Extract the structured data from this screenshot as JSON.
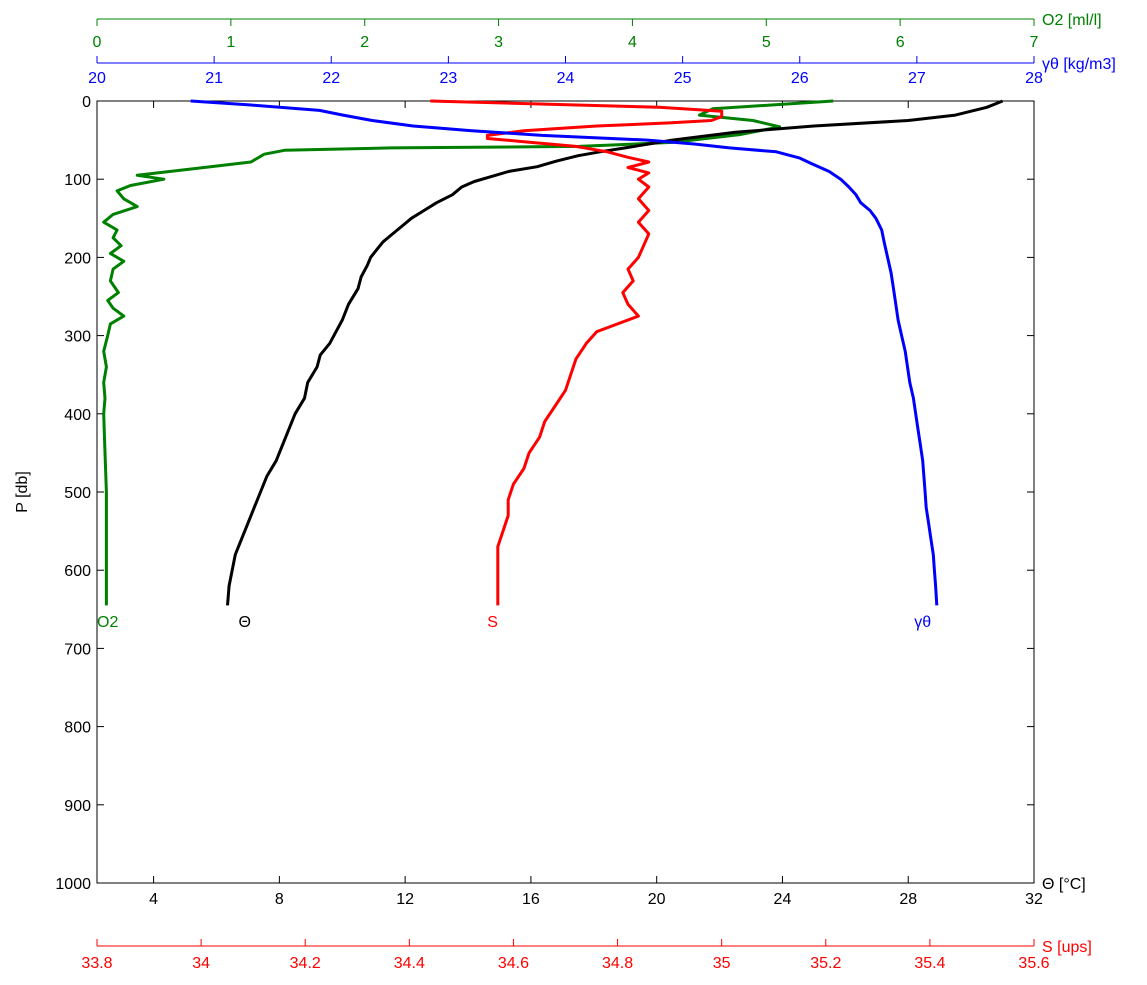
{
  "chart_data": {
    "type": "line",
    "y_axis": {
      "label": "P [db]",
      "ticks": [
        0,
        100,
        200,
        300,
        400,
        500,
        600,
        700,
        800,
        900,
        1000
      ],
      "range": [
        0,
        1000
      ],
      "inverted": true
    },
    "axes": {
      "theta": {
        "label": "Θ [°C]",
        "unit": "°C",
        "position": "bottom",
        "color": "#000000",
        "range": [
          2.2,
          32
        ],
        "ticks": [
          4,
          8,
          12,
          16,
          20,
          24,
          28,
          32
        ],
        "tick_labels": [
          "4",
          "8",
          "12",
          "16",
          "20",
          "24",
          "28",
          "32"
        ]
      },
      "salinity": {
        "label": "S [ups]",
        "unit": "ups",
        "position": "bottom-secondary",
        "color": "#ff0000",
        "range": [
          33.8,
          35.6
        ],
        "ticks": [
          33.8,
          34,
          34.2,
          34.4,
          34.6,
          34.8,
          35,
          35.2,
          35.4,
          35.6
        ],
        "tick_labels": [
          "33.8",
          "34",
          "34.2",
          "34.4",
          "34.6",
          "34.8",
          "35",
          "35.2",
          "35.4",
          "35.6"
        ]
      },
      "oxygen": {
        "label": "O2 [ml/l]",
        "unit": "ml/l",
        "position": "top",
        "color": "#008000",
        "range": [
          0,
          7
        ],
        "ticks": [
          0,
          1,
          2,
          3,
          4,
          5,
          6,
          7
        ],
        "tick_labels": [
          "0",
          "1",
          "2",
          "3",
          "4",
          "5",
          "6",
          "7"
        ]
      },
      "gamma": {
        "label": "γθ [kg/m3]",
        "unit": "kg/m3",
        "position": "top-secondary",
        "color": "#0000ff",
        "range": [
          20,
          28
        ],
        "ticks": [
          20,
          21,
          22,
          23,
          24,
          25,
          26,
          27,
          28
        ],
        "tick_labels": [
          "20",
          "21",
          "22",
          "23",
          "24",
          "25",
          "26",
          "27",
          "28"
        ]
      }
    },
    "series": [
      {
        "name": "O2",
        "axis": "oxygen",
        "color": "#008000",
        "label_at": [
          0.08,
          665
        ],
        "points": [
          [
            5.5,
            0
          ],
          [
            4.6,
            10
          ],
          [
            4.5,
            18
          ],
          [
            4.9,
            25
          ],
          [
            5.1,
            33
          ],
          [
            4.8,
            43
          ],
          [
            4.3,
            53
          ],
          [
            3.6,
            58
          ],
          [
            2.2,
            60
          ],
          [
            1.4,
            63
          ],
          [
            1.25,
            68
          ],
          [
            1.15,
            78
          ],
          [
            0.8,
            85
          ],
          [
            0.3,
            95
          ],
          [
            0.5,
            100
          ],
          [
            0.25,
            108
          ],
          [
            0.15,
            115
          ],
          [
            0.2,
            125
          ],
          [
            0.3,
            135
          ],
          [
            0.12,
            145
          ],
          [
            0.05,
            155
          ],
          [
            0.15,
            165
          ],
          [
            0.12,
            175
          ],
          [
            0.18,
            185
          ],
          [
            0.1,
            195
          ],
          [
            0.2,
            205
          ],
          [
            0.12,
            215
          ],
          [
            0.1,
            230
          ],
          [
            0.16,
            245
          ],
          [
            0.08,
            255
          ],
          [
            0.12,
            265
          ],
          [
            0.2,
            275
          ],
          [
            0.1,
            285
          ],
          [
            0.08,
            300
          ],
          [
            0.05,
            320
          ],
          [
            0.07,
            340
          ],
          [
            0.05,
            360
          ],
          [
            0.06,
            380
          ],
          [
            0.05,
            400
          ],
          [
            0.06,
            450
          ],
          [
            0.07,
            500
          ],
          [
            0.07,
            550
          ],
          [
            0.07,
            600
          ],
          [
            0.07,
            645
          ]
        ]
      },
      {
        "name": "Θ",
        "axis": "theta",
        "color": "#000000",
        "label_at": [
          6.9,
          665
        ],
        "points": [
          [
            31.0,
            0
          ],
          [
            30.5,
            8
          ],
          [
            29.5,
            18
          ],
          [
            28.0,
            25
          ],
          [
            25.0,
            32
          ],
          [
            22.5,
            40
          ],
          [
            20.5,
            50
          ],
          [
            19.0,
            60
          ],
          [
            18.2,
            65
          ],
          [
            17.5,
            70
          ],
          [
            16.8,
            77
          ],
          [
            16.2,
            84
          ],
          [
            15.3,
            90
          ],
          [
            14.7,
            97
          ],
          [
            14.2,
            103
          ],
          [
            13.8,
            110
          ],
          [
            13.5,
            120
          ],
          [
            13.0,
            130
          ],
          [
            12.6,
            140
          ],
          [
            12.2,
            150
          ],
          [
            11.9,
            160
          ],
          [
            11.6,
            170
          ],
          [
            11.3,
            180
          ],
          [
            11.1,
            190
          ],
          [
            10.9,
            200
          ],
          [
            10.8,
            210
          ],
          [
            10.6,
            225
          ],
          [
            10.5,
            240
          ],
          [
            10.2,
            260
          ],
          [
            10.0,
            280
          ],
          [
            9.8,
            295
          ],
          [
            9.6,
            310
          ],
          [
            9.3,
            325
          ],
          [
            9.2,
            340
          ],
          [
            8.9,
            360
          ],
          [
            8.8,
            380
          ],
          [
            8.5,
            400
          ],
          [
            8.3,
            420
          ],
          [
            8.1,
            440
          ],
          [
            7.9,
            460
          ],
          [
            7.6,
            480
          ],
          [
            7.4,
            500
          ],
          [
            7.2,
            520
          ],
          [
            7.0,
            540
          ],
          [
            6.8,
            560
          ],
          [
            6.6,
            580
          ],
          [
            6.5,
            600
          ],
          [
            6.4,
            620
          ],
          [
            6.35,
            645
          ]
        ]
      },
      {
        "name": "S",
        "axis": "salinity",
        "color": "#ff0000",
        "label_at": [
          34.56,
          665
        ],
        "points": [
          [
            34.44,
            0
          ],
          [
            34.66,
            4
          ],
          [
            34.88,
            8
          ],
          [
            35.0,
            13
          ],
          [
            35.0,
            20
          ],
          [
            34.98,
            25
          ],
          [
            34.9,
            28
          ],
          [
            34.76,
            32
          ],
          [
            34.62,
            38
          ],
          [
            34.55,
            44
          ],
          [
            34.55,
            48
          ],
          [
            34.62,
            52
          ],
          [
            34.72,
            58
          ],
          [
            34.78,
            65
          ],
          [
            34.82,
            72
          ],
          [
            34.86,
            78
          ],
          [
            34.82,
            85
          ],
          [
            34.86,
            92
          ],
          [
            34.84,
            100
          ],
          [
            34.86,
            110
          ],
          [
            34.84,
            125
          ],
          [
            34.86,
            140
          ],
          [
            34.84,
            155
          ],
          [
            34.86,
            170
          ],
          [
            34.85,
            185
          ],
          [
            34.84,
            200
          ],
          [
            34.82,
            215
          ],
          [
            34.83,
            230
          ],
          [
            34.81,
            245
          ],
          [
            34.82,
            260
          ],
          [
            34.84,
            275
          ],
          [
            34.8,
            285
          ],
          [
            34.76,
            295
          ],
          [
            34.74,
            310
          ],
          [
            34.72,
            330
          ],
          [
            34.71,
            350
          ],
          [
            34.7,
            370
          ],
          [
            34.68,
            390
          ],
          [
            34.66,
            410
          ],
          [
            34.65,
            430
          ],
          [
            34.63,
            450
          ],
          [
            34.62,
            470
          ],
          [
            34.6,
            490
          ],
          [
            34.59,
            510
          ],
          [
            34.59,
            530
          ],
          [
            34.58,
            550
          ],
          [
            34.57,
            570
          ],
          [
            34.57,
            600
          ],
          [
            34.57,
            645
          ]
        ]
      },
      {
        "name": "γθ",
        "axis": "gamma",
        "color": "#0000ff",
        "label_at": [
          27.05,
          665
        ],
        "points": [
          [
            20.8,
            0
          ],
          [
            21.3,
            5
          ],
          [
            21.9,
            12
          ],
          [
            22.1,
            18
          ],
          [
            22.35,
            25
          ],
          [
            22.7,
            32
          ],
          [
            23.2,
            38
          ],
          [
            23.8,
            44
          ],
          [
            24.7,
            50
          ],
          [
            25.1,
            55
          ],
          [
            25.4,
            60
          ],
          [
            25.8,
            65
          ],
          [
            26.0,
            73
          ],
          [
            26.1,
            80
          ],
          [
            26.25,
            90
          ],
          [
            26.35,
            100
          ],
          [
            26.42,
            110
          ],
          [
            26.48,
            120
          ],
          [
            26.52,
            130
          ],
          [
            26.6,
            140
          ],
          [
            26.65,
            150
          ],
          [
            26.7,
            165
          ],
          [
            26.72,
            180
          ],
          [
            26.75,
            200
          ],
          [
            26.78,
            220
          ],
          [
            26.8,
            240
          ],
          [
            26.82,
            260
          ],
          [
            26.84,
            280
          ],
          [
            26.87,
            300
          ],
          [
            26.9,
            320
          ],
          [
            26.92,
            340
          ],
          [
            26.94,
            360
          ],
          [
            26.97,
            380
          ],
          [
            26.99,
            400
          ],
          [
            27.01,
            420
          ],
          [
            27.03,
            440
          ],
          [
            27.05,
            460
          ],
          [
            27.06,
            480
          ],
          [
            27.07,
            500
          ],
          [
            27.08,
            520
          ],
          [
            27.1,
            540
          ],
          [
            27.12,
            560
          ],
          [
            27.14,
            580
          ],
          [
            27.15,
            600
          ],
          [
            27.16,
            620
          ],
          [
            27.17,
            645
          ]
        ]
      }
    ],
    "grid": false,
    "legend": "none"
  }
}
